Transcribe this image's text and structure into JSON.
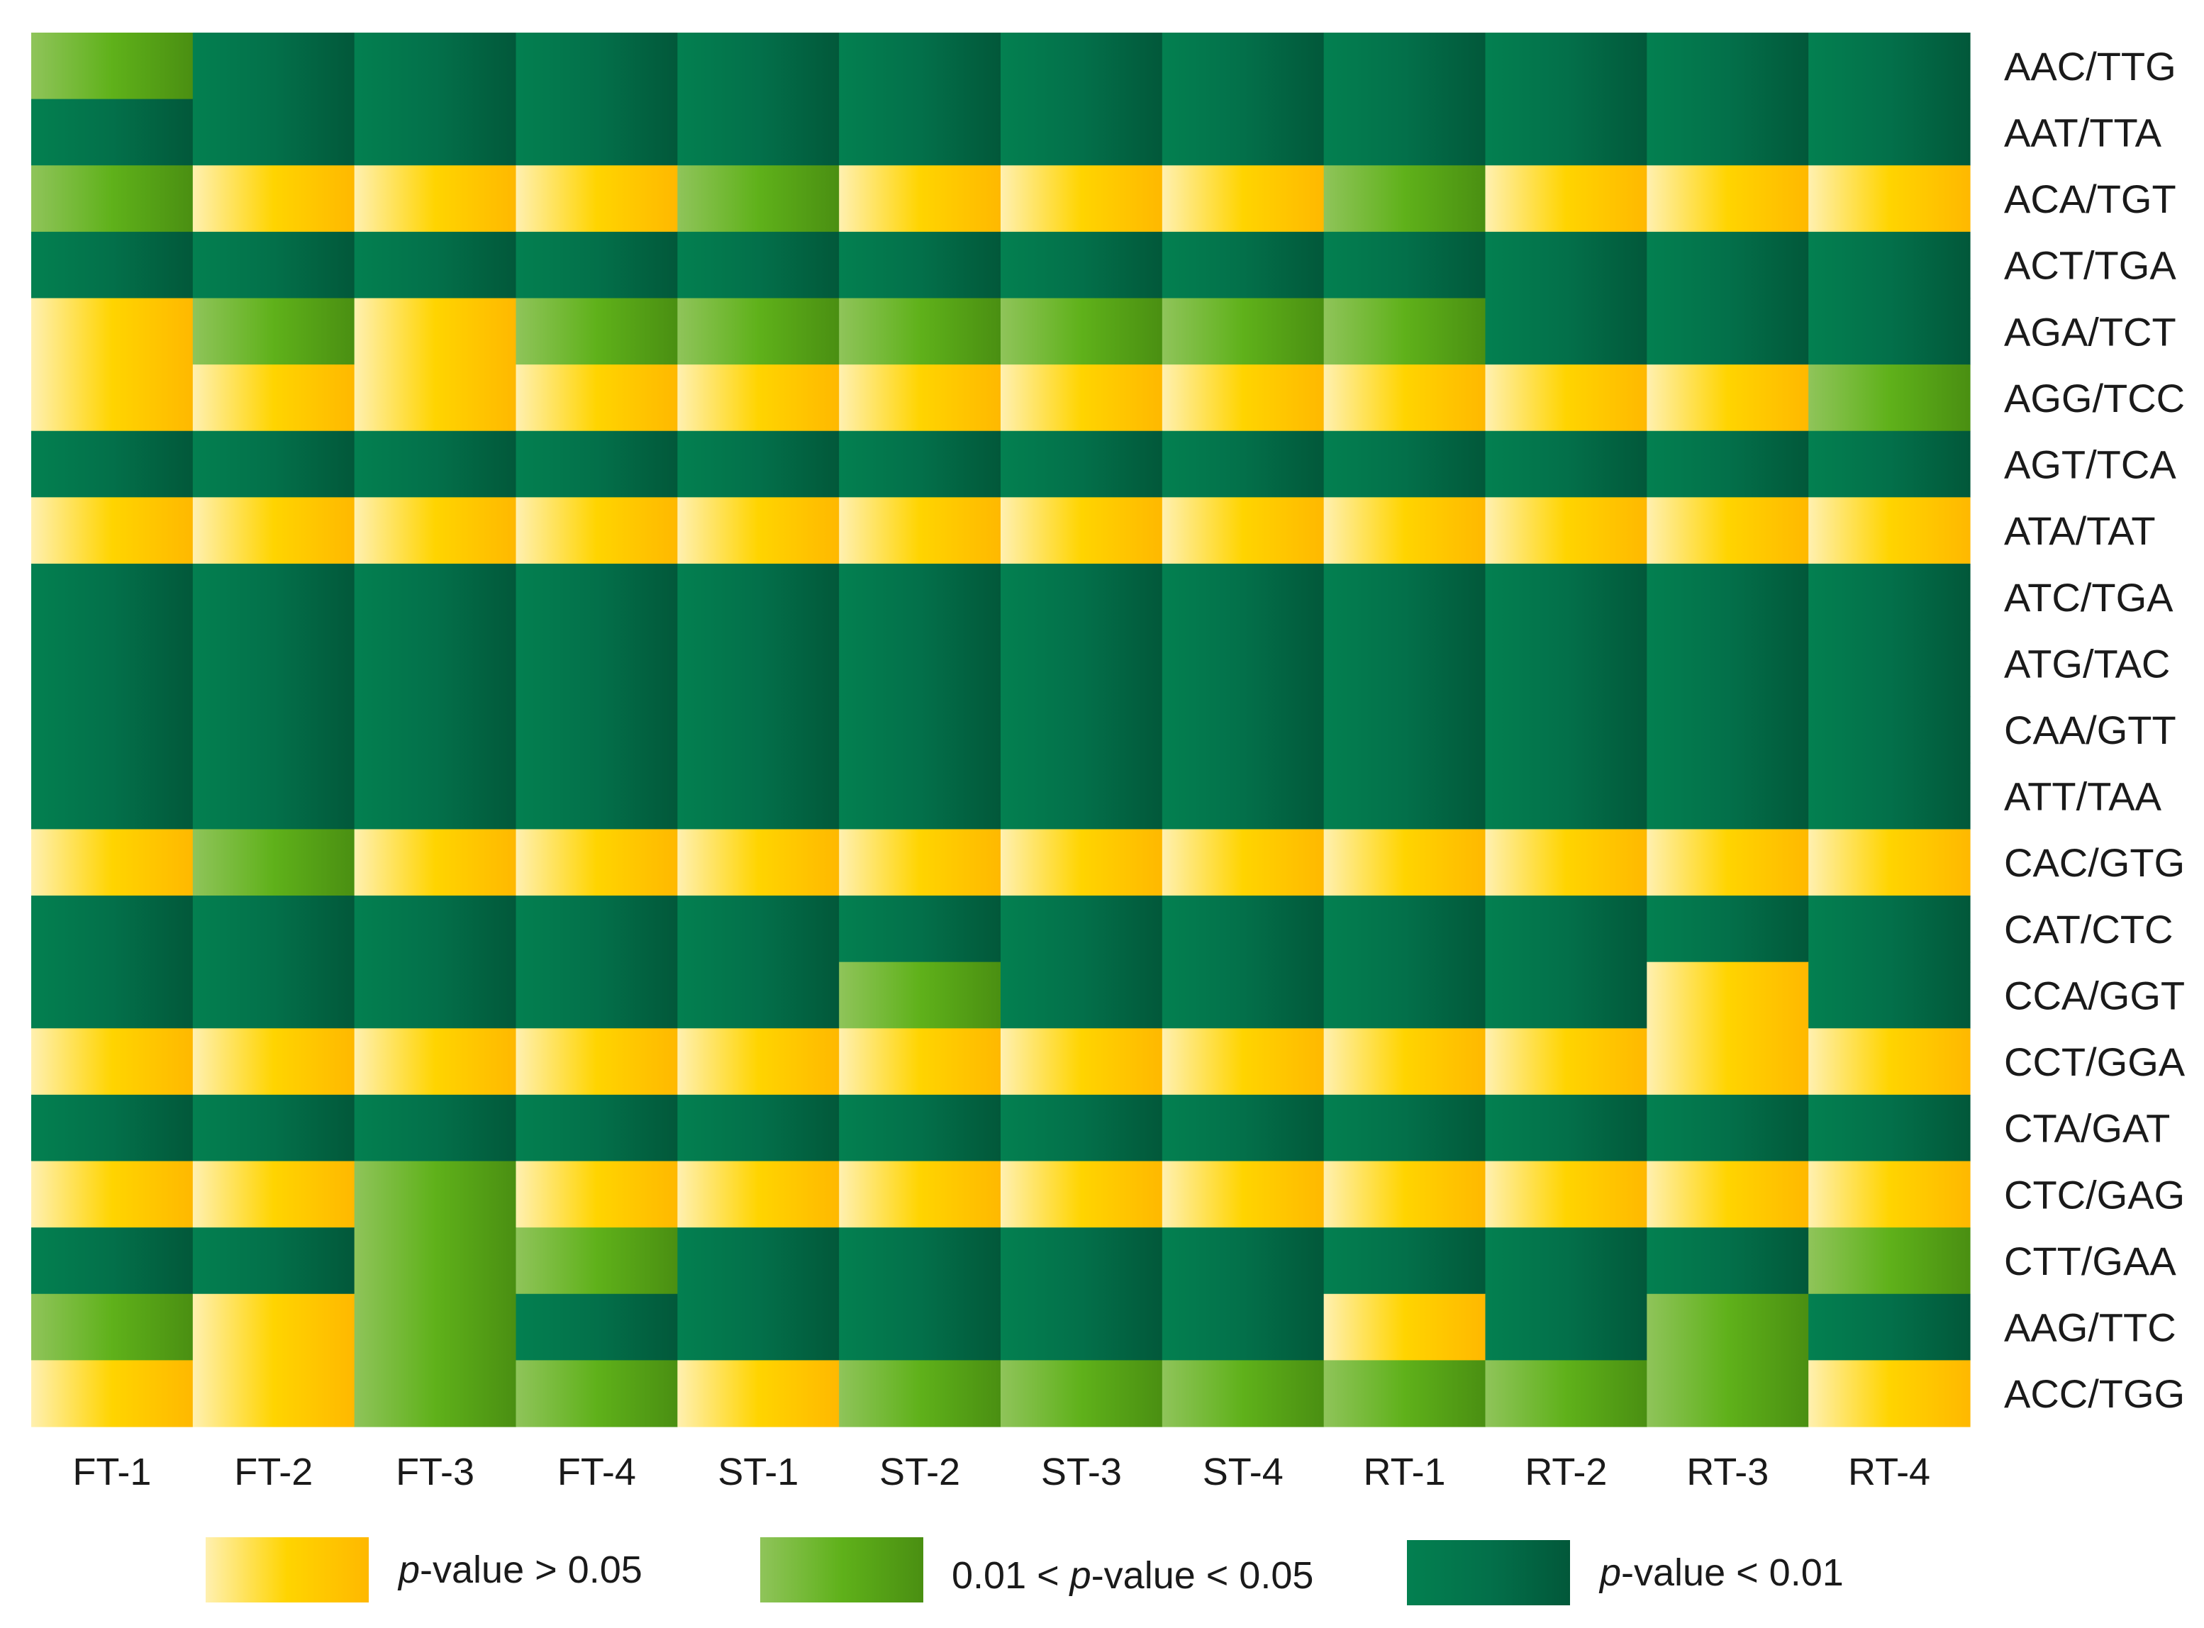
{
  "chart_data": {
    "type": "heatmap",
    "title": "",
    "xlabel": "",
    "ylabel": "",
    "columns": [
      "FT-1",
      "FT-2",
      "FT-3",
      "FT-4",
      "ST-1",
      "ST-2",
      "ST-3",
      "ST-4",
      "RT-1",
      "RT-2",
      "RT-3",
      "RT-4"
    ],
    "rows": [
      "AAC/TTG",
      "AAT/TTA",
      "ACA/TGT",
      "ACT/TGA",
      "AGA/TCT",
      "AGG/TCC",
      "AGT/TCA",
      "ATA/TAT",
      "ATC/TGA",
      "ATG/TAC",
      "CAA/GTT",
      "ATT/TAA",
      "CAC/GTG",
      "CAT/CTC",
      "CCA/GGT",
      "CCT/GGA",
      "CTA/GAT",
      "CTC/GAG",
      "CTT/GAA",
      "AAG/TTC",
      "ACC/TGG"
    ],
    "category_codes": {
      "0": "p-value > 0.05",
      "1": "0.01 < p-value < 0.05",
      "2": "p-value < 0.01"
    },
    "values": [
      [
        1,
        2,
        2,
        2,
        2,
        2,
        2,
        2,
        2,
        2,
        2,
        2
      ],
      [
        2,
        2,
        2,
        2,
        2,
        2,
        2,
        2,
        2,
        2,
        2,
        2
      ],
      [
        1,
        0,
        0,
        0,
        1,
        0,
        0,
        0,
        1,
        0,
        0,
        0
      ],
      [
        2,
        2,
        2,
        2,
        2,
        2,
        2,
        2,
        2,
        2,
        2,
        2
      ],
      [
        0,
        1,
        0,
        1,
        1,
        1,
        1,
        1,
        1,
        2,
        2,
        2
      ],
      [
        0,
        0,
        0,
        0,
        0,
        0,
        0,
        0,
        0,
        0,
        0,
        1
      ],
      [
        2,
        2,
        2,
        2,
        2,
        2,
        2,
        2,
        2,
        2,
        2,
        2
      ],
      [
        0,
        0,
        0,
        0,
        0,
        0,
        0,
        0,
        0,
        0,
        0,
        0
      ],
      [
        2,
        2,
        2,
        2,
        2,
        2,
        2,
        2,
        2,
        2,
        2,
        2
      ],
      [
        2,
        2,
        2,
        2,
        2,
        2,
        2,
        2,
        2,
        2,
        2,
        2
      ],
      [
        2,
        2,
        2,
        2,
        2,
        2,
        2,
        2,
        2,
        2,
        2,
        2
      ],
      [
        2,
        2,
        2,
        2,
        2,
        2,
        2,
        2,
        2,
        2,
        2,
        2
      ],
      [
        0,
        1,
        0,
        0,
        0,
        0,
        0,
        0,
        0,
        0,
        0,
        0
      ],
      [
        2,
        2,
        2,
        2,
        2,
        2,
        2,
        2,
        2,
        2,
        2,
        2
      ],
      [
        2,
        2,
        2,
        2,
        2,
        1,
        2,
        2,
        2,
        2,
        0,
        2
      ],
      [
        0,
        0,
        0,
        0,
        0,
        0,
        0,
        0,
        0,
        0,
        0,
        0
      ],
      [
        2,
        2,
        2,
        2,
        2,
        2,
        2,
        2,
        2,
        2,
        2,
        2
      ],
      [
        0,
        0,
        1,
        0,
        0,
        0,
        0,
        0,
        0,
        0,
        0,
        0
      ],
      [
        2,
        2,
        1,
        1,
        2,
        2,
        2,
        2,
        2,
        2,
        2,
        1
      ],
      [
        1,
        0,
        1,
        2,
        2,
        2,
        2,
        2,
        0,
        2,
        1,
        2
      ],
      [
        0,
        0,
        1,
        1,
        0,
        1,
        1,
        1,
        1,
        1,
        1,
        0
      ]
    ],
    "legend": [
      {
        "label_italic": "p",
        "label_rest": "-value > 0.05",
        "prefix": "",
        "color": "#ffc800"
      },
      {
        "label_italic": "p",
        "label_rest": "-value < 0.05",
        "prefix": "0.01 < ",
        "color": "#5aa81e"
      },
      {
        "label_italic": "p",
        "label_rest": "-value < 0.01",
        "prefix": "",
        "color": "#03704a"
      }
    ],
    "colors": {
      "yellow": {
        "light": "#fff0b0",
        "mid": "#ffd400",
        "dark": "#ffb800"
      },
      "lightgreen": {
        "light": "#8fc45a",
        "mid": "#5fb11a",
        "dark": "#4a8f12"
      },
      "darkgreen": {
        "light": "#038050",
        "mid": "#03704a",
        "dark": "#02583a"
      }
    }
  }
}
